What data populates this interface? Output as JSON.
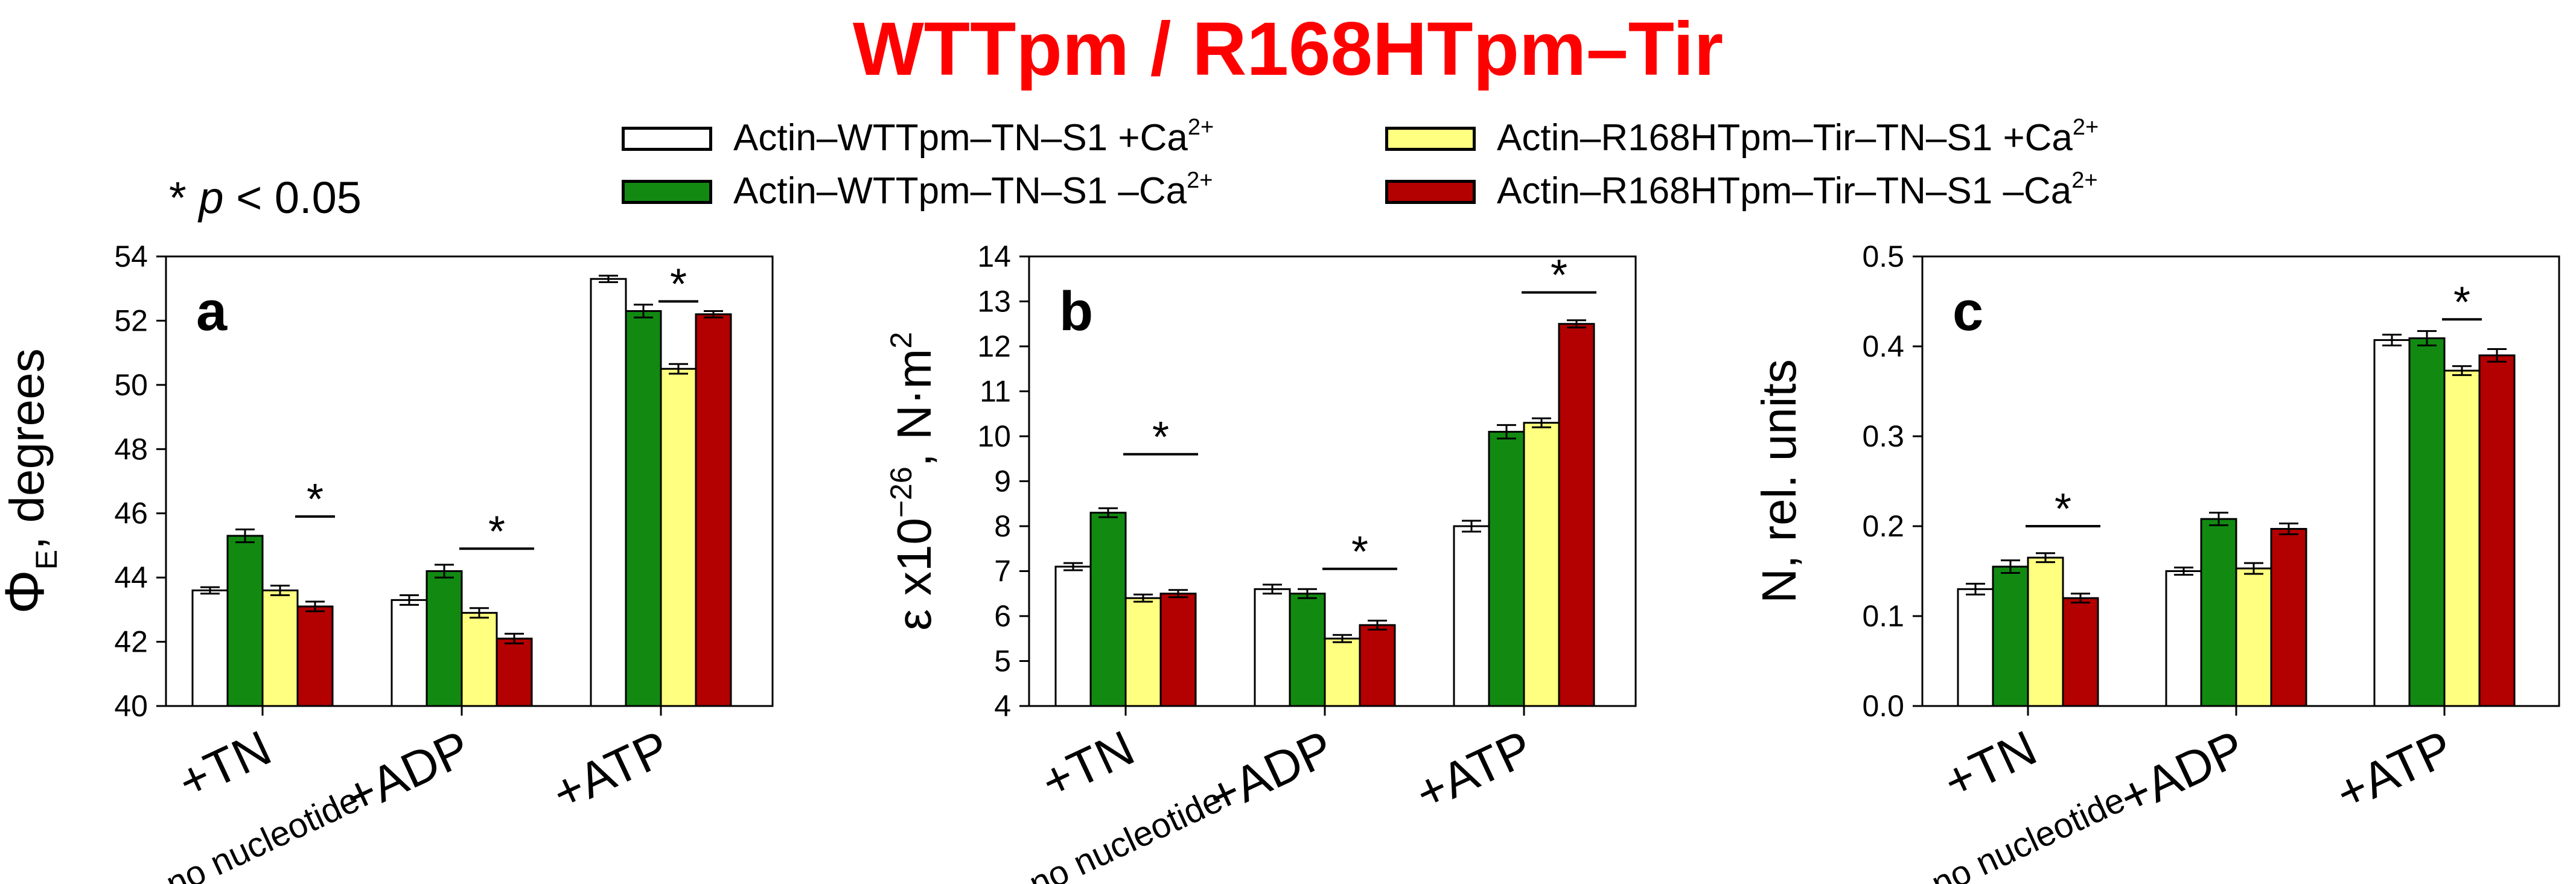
{
  "figure": {
    "title": "WTTpm / R168HTpm–Tir",
    "significance_note": "* p < 0.05",
    "significance_star": "*",
    "significance_p": "p",
    "significance_rest": " < 0.05"
  },
  "legend": [
    {
      "label": "Actin–WTTpm–TN–S1 +Ca",
      "sup": "2+",
      "color": "#ffffff"
    },
    {
      "label": "Actin–WTTpm–TN–S1 –Ca",
      "sup": "2+",
      "color": "#128a12"
    },
    {
      "label": "Actin–R168HTpm–Tir–TN–S1 +Ca",
      "sup": "2+",
      "color": "#ffff80"
    },
    {
      "label": "Actin–R168HTpm–Tir–TN–S1 –Ca",
      "sup": "2+",
      "color": "#b30000"
    }
  ],
  "chart_data": [
    {
      "type": "bar",
      "panel": "a",
      "ylabel": "ΦE, degrees",
      "ylabel_main": "Φ",
      "ylabel_sub": "E",
      "ylabel_rest": ", degrees",
      "ylim": [
        40,
        54
      ],
      "yticks": [
        40,
        42,
        44,
        46,
        48,
        50,
        52,
        54
      ],
      "ytick_labels": [
        "40",
        "42",
        "44",
        "46",
        "48",
        "50",
        "52",
        "54"
      ],
      "categories": [
        [
          "+TN",
          "no nucleotide"
        ],
        [
          "+ADP"
        ],
        [
          "+ATP"
        ]
      ],
      "series": [
        {
          "name": "Actin–WTTpm–TN–S1 +Ca2+",
          "values": [
            43.6,
            43.3,
            53.3
          ],
          "errors": [
            0.1,
            0.15,
            0.1
          ]
        },
        {
          "name": "Actin–WTTpm–TN–S1 –Ca2+",
          "values": [
            45.3,
            44.2,
            52.3
          ],
          "errors": [
            0.2,
            0.2,
            0.2
          ]
        },
        {
          "name": "Actin–R168HTpm–Tir–TN–S1 +Ca2+",
          "values": [
            43.6,
            42.9,
            50.5
          ],
          "errors": [
            0.15,
            0.15,
            0.15
          ]
        },
        {
          "name": "Actin–R168HTpm–Tir–TN–S1 –Ca2+",
          "values": [
            43.1,
            42.1,
            52.2
          ],
          "errors": [
            0.15,
            0.15,
            0.1
          ]
        }
      ],
      "significance": [
        {
          "category": 0,
          "from_series": 3,
          "to_series": 3,
          "y": 45.9
        },
        {
          "category": 1,
          "from_series": 2,
          "to_series": 3,
          "y": 44.9
        },
        {
          "category": 2,
          "from_series": 2,
          "to_series": 2,
          "y": 52.6
        }
      ]
    },
    {
      "type": "bar",
      "panel": "b",
      "ylabel": "ε x10−26, N·m2",
      "ylabel_main": "ε x10",
      "ylabel_sup1": "−26",
      "ylabel_mid": ", N·m",
      "ylabel_sup2": "2",
      "ylim": [
        4,
        14
      ],
      "yticks": [
        4,
        5,
        6,
        7,
        8,
        9,
        10,
        11,
        12,
        13,
        14
      ],
      "ytick_labels": [
        "4",
        "5",
        "6",
        "7",
        "8",
        "9",
        "10",
        "11",
        "12",
        "13",
        "14"
      ],
      "categories": [
        [
          "+TN",
          "no nucleotide"
        ],
        [
          "+ADP"
        ],
        [
          "+ATP"
        ]
      ],
      "series": [
        {
          "name": "Actin–WTTpm–TN–S1 +Ca2+",
          "values": [
            7.1,
            6.6,
            8.0
          ],
          "errors": [
            0.08,
            0.1,
            0.12
          ]
        },
        {
          "name": "Actin–WTTpm–TN–S1 –Ca2+",
          "values": [
            8.3,
            6.5,
            10.1
          ],
          "errors": [
            0.1,
            0.1,
            0.15
          ]
        },
        {
          "name": "Actin–R168HTpm–Tir–TN–S1 +Ca2+",
          "values": [
            6.4,
            5.5,
            10.3
          ],
          "errors": [
            0.08,
            0.08,
            0.1
          ]
        },
        {
          "name": "Actin–R168HTpm–Tir–TN–S1 –Ca2+",
          "values": [
            6.5,
            5.8,
            12.5
          ],
          "errors": [
            0.08,
            0.1,
            0.08
          ]
        }
      ],
      "significance": [
        {
          "category": 0,
          "from_series": 2,
          "to_series": 3,
          "y": 9.6
        },
        {
          "category": 1,
          "from_series": 2,
          "to_series": 3,
          "y": 7.05
        },
        {
          "category": 2,
          "from_series": 2,
          "to_series": 3,
          "y": 13.2
        }
      ]
    },
    {
      "type": "bar",
      "panel": "c",
      "ylabel": "N, rel. units",
      "ylim": [
        0.0,
        0.5
      ],
      "yticks": [
        0.0,
        0.1,
        0.2,
        0.3,
        0.4,
        0.5
      ],
      "ytick_labels": [
        "0.0",
        "0.1",
        "0.2",
        "0.3",
        "0.4",
        "0.5"
      ],
      "categories": [
        [
          "+TN",
          "no nucleotide"
        ],
        [
          "+ADP"
        ],
        [
          "+ATP"
        ]
      ],
      "series": [
        {
          "name": "Actin–WTTpm–TN–S1 +Ca2+",
          "values": [
            0.13,
            0.15,
            0.407
          ],
          "errors": [
            0.006,
            0.004,
            0.006
          ]
        },
        {
          "name": "Actin–WTTpm–TN–S1 –Ca2+",
          "values": [
            0.155,
            0.208,
            0.409
          ],
          "errors": [
            0.007,
            0.007,
            0.008
          ]
        },
        {
          "name": "Actin–R168HTpm–Tir–TN–S1 +Ca2+",
          "values": [
            0.165,
            0.153,
            0.373
          ],
          "errors": [
            0.005,
            0.006,
            0.005
          ]
        },
        {
          "name": "Actin–R168HTpm–Tir–TN–S1 –Ca2+",
          "values": [
            0.12,
            0.197,
            0.39
          ],
          "errors": [
            0.005,
            0.006,
            0.007
          ]
        }
      ],
      "significance": [
        {
          "category": 0,
          "from_series": 2,
          "to_series": 3,
          "y": 0.2
        },
        {
          "category": 2,
          "from_series": 2,
          "to_series": 2,
          "y": 0.43
        }
      ]
    }
  ]
}
